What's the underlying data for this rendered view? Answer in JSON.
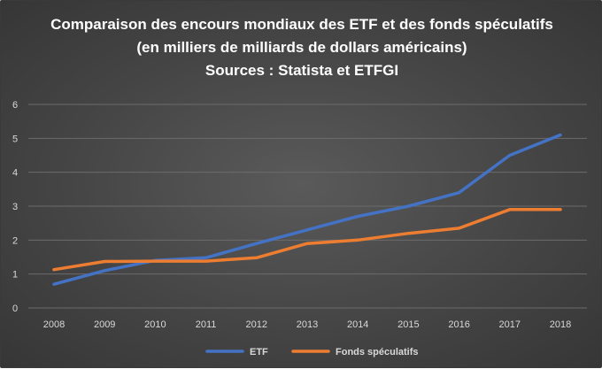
{
  "chart_data": {
    "type": "line",
    "title": [
      "Comparaison des encours mondiaux des ETF et des fonds spéculatifs",
      "(en milliers de milliards de dollars américains)",
      "Sources : Statista et ETFGI"
    ],
    "x": [
      "2008",
      "2009",
      "2010",
      "2011",
      "2012",
      "2013",
      "2014",
      "2015",
      "2016",
      "2017",
      "2018"
    ],
    "yticks": [
      "0",
      "1",
      "2",
      "3",
      "4",
      "5",
      "6"
    ],
    "ylim": [
      0,
      6
    ],
    "grid": true,
    "legend_position": "bottom",
    "series": [
      {
        "name": "ETF",
        "color": "#4472c4",
        "values": [
          0.7,
          1.1,
          1.4,
          1.48,
          1.9,
          2.3,
          2.7,
          3.0,
          3.4,
          4.5,
          5.1
        ]
      },
      {
        "name": "Fonds spéculatifs",
        "color": "#ed7d31",
        "values": [
          1.13,
          1.37,
          1.38,
          1.38,
          1.48,
          1.9,
          2.0,
          2.2,
          2.35,
          2.9,
          2.9
        ]
      }
    ]
  }
}
